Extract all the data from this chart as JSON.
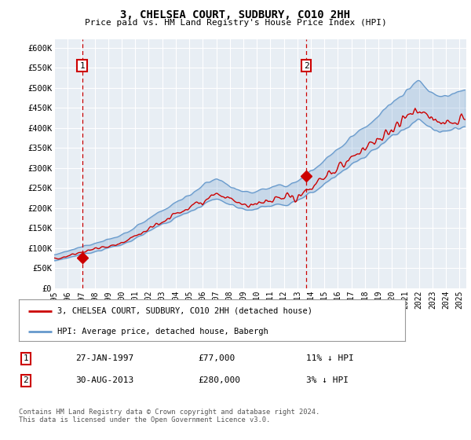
{
  "title": "3, CHELSEA COURT, SUDBURY, CO10 2HH",
  "subtitle": "Price paid vs. HM Land Registry's House Price Index (HPI)",
  "ylabel_ticks": [
    "£0",
    "£50K",
    "£100K",
    "£150K",
    "£200K",
    "£250K",
    "£300K",
    "£350K",
    "£400K",
    "£450K",
    "£500K",
    "£550K",
    "£600K"
  ],
  "ytick_values": [
    0,
    50000,
    100000,
    150000,
    200000,
    250000,
    300000,
    350000,
    400000,
    450000,
    500000,
    550000,
    600000
  ],
  "ylim": [
    0,
    620000
  ],
  "xlim_start": 1995.0,
  "xlim_end": 2025.5,
  "transaction1": {
    "date_num": 1997.07,
    "price": 77000,
    "label": "1",
    "date_str": "27-JAN-1997",
    "price_str": "£77,000",
    "hpi_str": "11% ↓ HPI"
  },
  "transaction2": {
    "date_num": 2013.66,
    "price": 280000,
    "label": "2",
    "date_str": "30-AUG-2013",
    "price_str": "£280,000",
    "hpi_str": "3% ↓ HPI"
  },
  "line_color_sold": "#cc0000",
  "line_color_hpi": "#6699cc",
  "background_color": "#e8eef4",
  "grid_color": "#ffffff",
  "legend_label_sold": "3, CHELSEA COURT, SUDBURY, CO10 2HH (detached house)",
  "legend_label_hpi": "HPI: Average price, detached house, Babergh",
  "footer": "Contains HM Land Registry data © Crown copyright and database right 2024.\nThis data is licensed under the Open Government Licence v3.0.",
  "xtick_years": [
    1995,
    1996,
    1997,
    1998,
    1999,
    2000,
    2001,
    2002,
    2003,
    2004,
    2005,
    2006,
    2007,
    2008,
    2009,
    2010,
    2011,
    2012,
    2013,
    2014,
    2015,
    2016,
    2017,
    2018,
    2019,
    2020,
    2021,
    2022,
    2023,
    2024,
    2025
  ],
  "fig_width": 6.0,
  "fig_height": 5.6,
  "dpi": 100
}
